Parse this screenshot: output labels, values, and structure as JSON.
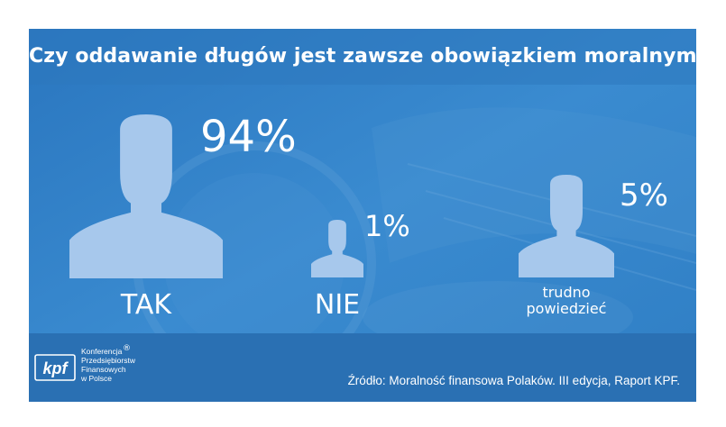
{
  "title": "Czy oddawanie długów jest zawsze obowiązkiem moralnym?",
  "chart_data": {
    "type": "bar",
    "categories": [
      "TAK",
      "NIE",
      "trudno powiedzieć"
    ],
    "values": [
      94,
      1,
      5
    ],
    "labels": [
      "94%",
      "1%",
      "5%"
    ]
  },
  "categories_display": [
    "TAK",
    "NIE"
  ],
  "category_trudno": {
    "line1": "trudno",
    "line2": "powiedzieć"
  },
  "logo": {
    "mark": "kpf",
    "registered": "®",
    "lines": [
      "Konferencja",
      "Przedsiębiorstw",
      "Finansowych",
      "w Polsce"
    ]
  },
  "source": "Źródło: Moralność finansowa Polaków. III edycja, Raport KPF.",
  "colors": {
    "background": "#2f7ec4",
    "figure": "#a7c8ec",
    "text": "#ffffff"
  },
  "icons": {
    "figure": "person-silhouette-icon",
    "logo": "kpf-logo"
  }
}
